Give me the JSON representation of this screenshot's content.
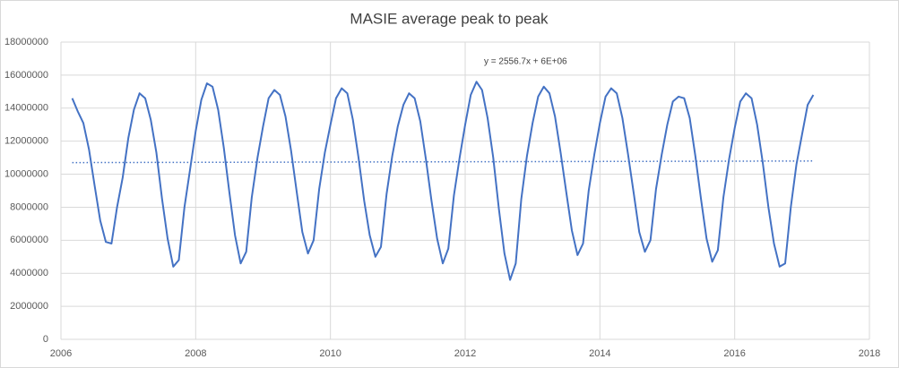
{
  "chart_data": {
    "type": "line",
    "title": "MASIE average peak to peak",
    "annotation": "y = 2556.7x + 6E+06",
    "xlim": [
      2006,
      2018
    ],
    "xticks": [
      2006,
      2008,
      2010,
      2012,
      2014,
      2016,
      2018
    ],
    "ylim": [
      0,
      18000000
    ],
    "yticks": [
      0,
      2000000,
      4000000,
      6000000,
      8000000,
      10000000,
      12000000,
      14000000,
      16000000,
      18000000
    ],
    "grid": true,
    "series": [
      {
        "color": "#4472c4",
        "x": [
          2006.167,
          2006.25,
          2006.333,
          2006.417,
          2006.5,
          2006.583,
          2006.667,
          2006.75,
          2006.833,
          2006.917,
          2007,
          2007.083,
          2007.167,
          2007.25,
          2007.333,
          2007.417,
          2007.5,
          2007.583,
          2007.667,
          2007.75,
          2007.833,
          2007.917,
          2008,
          2008.083,
          2008.167,
          2008.25,
          2008.333,
          2008.417,
          2008.5,
          2008.583,
          2008.667,
          2008.75,
          2008.833,
          2008.917,
          2009,
          2009.083,
          2009.167,
          2009.25,
          2009.333,
          2009.417,
          2009.5,
          2009.583,
          2009.667,
          2009.75,
          2009.833,
          2009.917,
          2010,
          2010.083,
          2010.167,
          2010.25,
          2010.333,
          2010.417,
          2010.5,
          2010.583,
          2010.667,
          2010.75,
          2010.833,
          2010.917,
          2011,
          2011.083,
          2011.167,
          2011.25,
          2011.333,
          2011.417,
          2011.5,
          2011.583,
          2011.667,
          2011.75,
          2011.833,
          2011.917,
          2012,
          2012.083,
          2012.167,
          2012.25,
          2012.333,
          2012.417,
          2012.5,
          2012.583,
          2012.667,
          2012.75,
          2012.833,
          2012.917,
          2013,
          2013.083,
          2013.167,
          2013.25,
          2013.333,
          2013.417,
          2013.5,
          2013.583,
          2013.667,
          2013.75,
          2013.833,
          2013.917,
          2014,
          2014.083,
          2014.167,
          2014.25,
          2014.333,
          2014.417,
          2014.5,
          2014.583,
          2014.667,
          2014.75,
          2014.833,
          2014.917,
          2015,
          2015.083,
          2015.167,
          2015.25,
          2015.333,
          2015.417,
          2015.5,
          2015.583,
          2015.667,
          2015.75,
          2015.833,
          2015.917,
          2016,
          2016.083,
          2016.167,
          2016.25,
          2016.333,
          2016.417,
          2016.5,
          2016.583,
          2016.667,
          2016.75,
          2016.833,
          2016.917,
          2017,
          2017.083,
          2017.167
        ],
        "values": [
          14600000,
          13800000,
          13100000,
          11500000,
          9300000,
          7200000,
          5900000,
          5800000,
          8000000,
          9800000,
          12200000,
          13900000,
          14900000,
          14600000,
          13300000,
          11300000,
          8500000,
          6100000,
          4400000,
          4800000,
          8000000,
          10300000,
          12600000,
          14500000,
          15500000,
          15300000,
          13900000,
          11600000,
          8900000,
          6300000,
          4600000,
          5300000,
          8600000,
          11000000,
          12900000,
          14600000,
          15100000,
          14800000,
          13500000,
          11400000,
          8900000,
          6500000,
          5200000,
          6000000,
          9100000,
          11300000,
          13000000,
          14600000,
          15200000,
          14900000,
          13300000,
          11000000,
          8400000,
          6300000,
          5000000,
          5600000,
          8800000,
          11100000,
          12900000,
          14200000,
          14900000,
          14600000,
          13200000,
          10900000,
          8400000,
          6100000,
          4600000,
          5500000,
          8700000,
          11000000,
          13000000,
          14800000,
          15600000,
          15100000,
          13400000,
          11000000,
          7900000,
          5200000,
          3600000,
          4600000,
          8500000,
          11100000,
          13100000,
          14700000,
          15300000,
          14900000,
          13500000,
          11300000,
          8900000,
          6600000,
          5100000,
          5800000,
          9000000,
          11200000,
          13100000,
          14700000,
          15200000,
          14900000,
          13400000,
          11200000,
          8900000,
          6500000,
          5300000,
          6000000,
          9100000,
          11200000,
          13000000,
          14400000,
          14700000,
          14600000,
          13400000,
          11100000,
          8500000,
          6100000,
          4700000,
          5400000,
          8600000,
          10900000,
          12800000,
          14400000,
          14900000,
          14600000,
          13000000,
          10700000,
          8000000,
          5800000,
          4400000,
          4600000,
          8000000,
          10600000,
          12400000,
          14200000,
          14800000
        ]
      },
      {
        "color": "#4472c4",
        "style": "dotted",
        "x": [
          2006.167,
          2017.167
        ],
        "values": [
          10700000,
          10800000
        ]
      }
    ]
  }
}
